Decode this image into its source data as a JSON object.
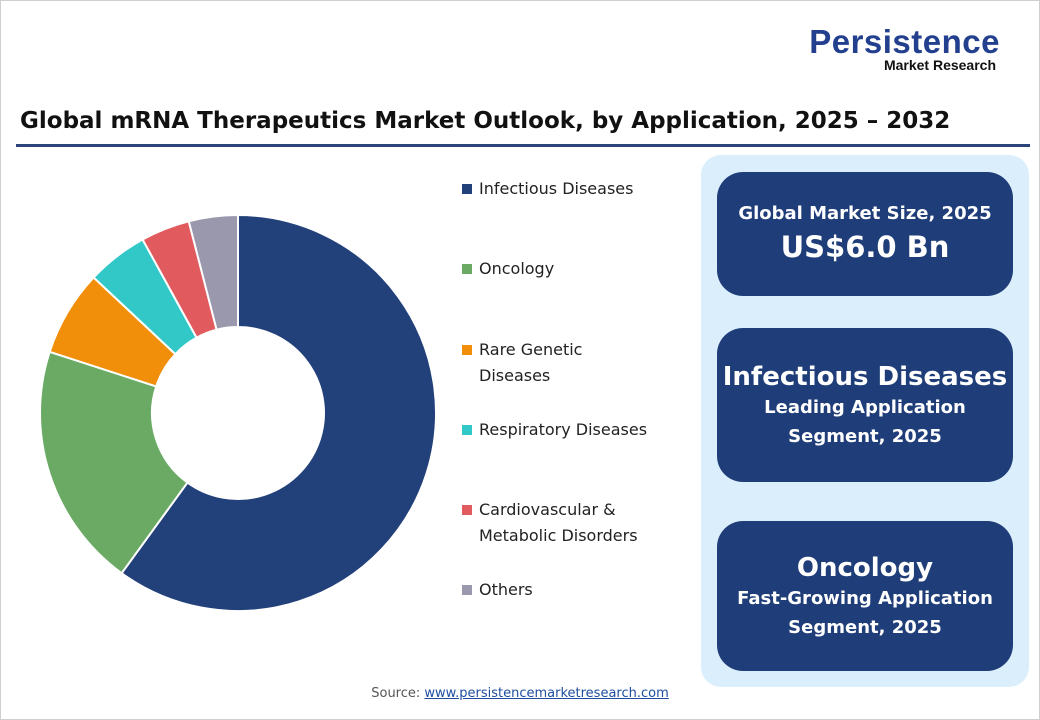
{
  "logo": {
    "line1": "Persistence",
    "line2": "Market Research"
  },
  "chart_data": {
    "type": "pie",
    "variant": "donut",
    "title": "Global mRNA Therapeutics Market Outlook, by Application, 2025 – 2032",
    "categories": [
      "Infectious Diseases",
      "Oncology",
      "Rare Genetic Diseases",
      "Respiratory Diseases",
      "Cardiovascular & Metabolic Disorders",
      "Others"
    ],
    "values": [
      60,
      20,
      7,
      5,
      4,
      4
    ],
    "unit": "% share (estimated)",
    "colors": [
      "#22407a",
      "#6aaa64",
      "#f18e0a",
      "#33c8c8",
      "#e05a5e",
      "#9a98ad"
    ],
    "legend_placement": "right"
  },
  "legend_lines": [
    [
      "Infectious Diseases"
    ],
    [
      "Oncology"
    ],
    [
      "Rare Genetic",
      "Diseases"
    ],
    [
      "Respiratory Diseases"
    ],
    [
      "Cardiovascular &",
      "Metabolic Disorders"
    ],
    [
      "Others"
    ]
  ],
  "stats": {
    "market": {
      "label": "Global Market Size, 2025",
      "value": "US$6.0 Bn"
    },
    "leading": {
      "value": "Infectious Diseases",
      "label1": "Leading Application",
      "label2": "Segment, 2025"
    },
    "fast": {
      "value": "Oncology",
      "label1": "Fast-Growing Application",
      "label2": "Segment, 2025"
    }
  },
  "source": {
    "label": "Source:",
    "link": "www.persistencemarketresearch.com"
  }
}
